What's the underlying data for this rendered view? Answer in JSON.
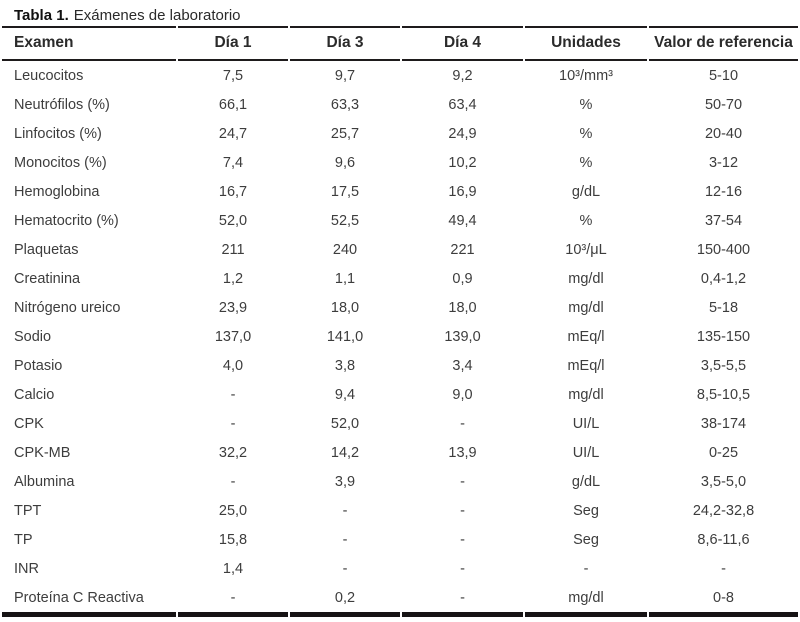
{
  "title": {
    "prefix": "Tabla 1.",
    "text": "Exámenes de laboratorio"
  },
  "colors": {
    "border": "#1e1b1c",
    "body_text": "#3d3d3d",
    "title_text": "#111111"
  },
  "table": {
    "columns": [
      "Examen",
      "Día 1",
      "Día 3",
      "Día 4",
      "Unidades",
      "Valor de referencia"
    ],
    "rows": [
      {
        "examen": "Leucocitos",
        "dia1": "7,5",
        "dia3": "9,7",
        "dia4": "9,2",
        "unidades": "10³/mm³",
        "referencia": "5-10"
      },
      {
        "examen": "Neutrófilos (%)",
        "dia1": "66,1",
        "dia3": "63,3",
        "dia4": "63,4",
        "unidades": "%",
        "referencia": "50-70"
      },
      {
        "examen": "Linfocitos (%)",
        "dia1": "24,7",
        "dia3": "25,7",
        "dia4": "24,9",
        "unidades": "%",
        "referencia": "20-40"
      },
      {
        "examen": "Monocitos (%)",
        "dia1": "7,4",
        "dia3": "9,6",
        "dia4": "10,2",
        "unidades": "%",
        "referencia": "3-12"
      },
      {
        "examen": "Hemoglobina",
        "dia1": "16,7",
        "dia3": "17,5",
        "dia4": "16,9",
        "unidades": "g/dL",
        "referencia": "12-16"
      },
      {
        "examen": "Hematocrito (%)",
        "dia1": "52,0",
        "dia3": "52,5",
        "dia4": "49,4",
        "unidades": "%",
        "referencia": "37-54"
      },
      {
        "examen": "Plaquetas",
        "dia1": "211",
        "dia3": "240",
        "dia4": "221",
        "unidades": "10³/μL",
        "referencia": "150-400"
      },
      {
        "examen": "Creatinina",
        "dia1": "1,2",
        "dia3": "1,1",
        "dia4": "0,9",
        "unidades": "mg/dl",
        "referencia": "0,4-1,2"
      },
      {
        "examen": "Nitrógeno ureico",
        "dia1": "23,9",
        "dia3": "18,0",
        "dia4": "18,0",
        "unidades": "mg/dl",
        "referencia": "5-18"
      },
      {
        "examen": "Sodio",
        "dia1": "137,0",
        "dia3": "141,0",
        "dia4": "139,0",
        "unidades": "mEq/l",
        "referencia": "135-150"
      },
      {
        "examen": "Potasio",
        "dia1": "4,0",
        "dia3": "3,8",
        "dia4": "3,4",
        "unidades": "mEq/l",
        "referencia": "3,5-5,5"
      },
      {
        "examen": "Calcio",
        "dia1": "-",
        "dia3": "9,4",
        "dia4": "9,0",
        "unidades": "mg/dl",
        "referencia": "8,5-10,5"
      },
      {
        "examen": "CPK",
        "dia1": "-",
        "dia3": "52,0",
        "dia4": "-",
        "unidades": "UI/L",
        "referencia": "38-174"
      },
      {
        "examen": "CPK-MB",
        "dia1": "32,2",
        "dia3": "14,2",
        "dia4": "13,9",
        "unidades": "UI/L",
        "referencia": "0-25"
      },
      {
        "examen": "Albumina",
        "dia1": "-",
        "dia3": "3,9",
        "dia4": "-",
        "unidades": "g/dL",
        "referencia": "3,5-5,0"
      },
      {
        "examen": "TPT",
        "dia1": "25,0",
        "dia3": "-",
        "dia4": "-",
        "unidades": "Seg",
        "referencia": "24,2-32,8"
      },
      {
        "examen": "TP",
        "dia1": "15,8",
        "dia3": "-",
        "dia4": "-",
        "unidades": "Seg",
        "referencia": "8,6-11,6"
      },
      {
        "examen": "INR",
        "dia1": "1,4",
        "dia3": "-",
        "dia4": "-",
        "unidades": "-",
        "referencia": "-"
      },
      {
        "examen": "Proteína C Reactiva",
        "dia1": "-",
        "dia3": "0,2",
        "dia4": "-",
        "unidades": "mg/dl",
        "referencia": "0-8"
      }
    ]
  }
}
